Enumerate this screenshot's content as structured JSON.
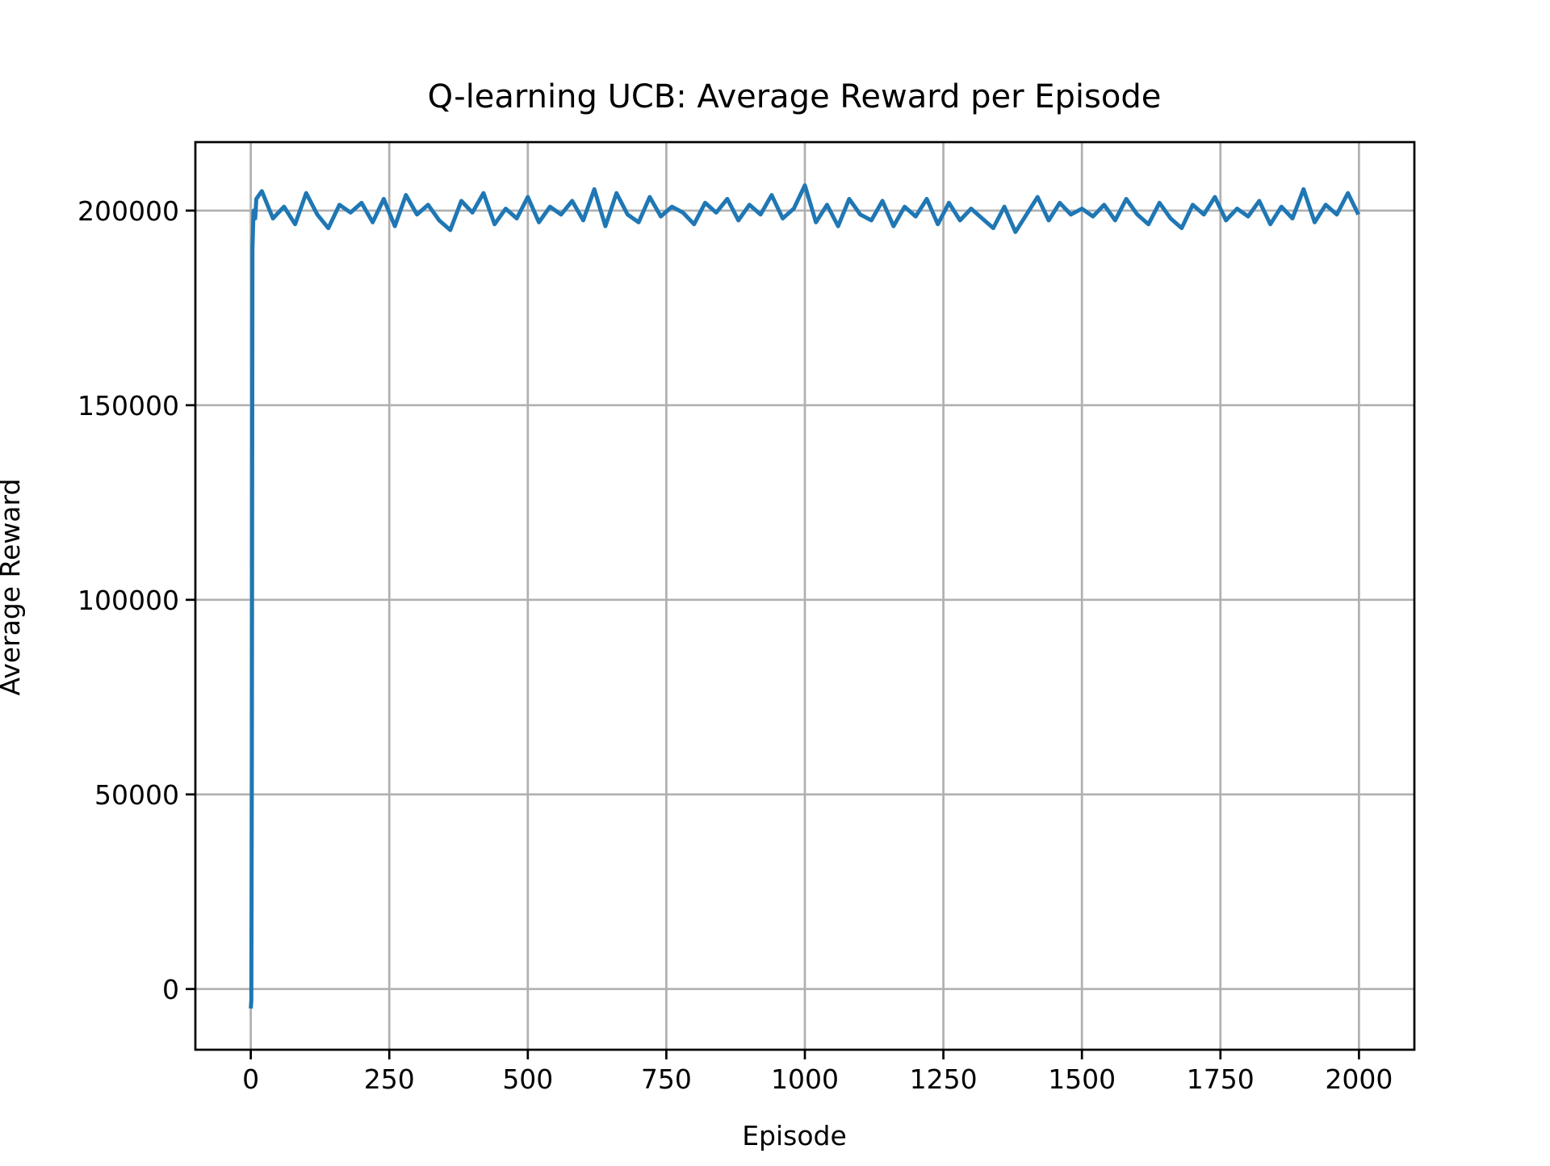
{
  "chart_data": {
    "type": "line",
    "title": "Q-learning UCB: Average Reward per Episode",
    "xlabel": "Episode",
    "ylabel": "Average Reward",
    "x": [
      0,
      1,
      2,
      3,
      5,
      8,
      10,
      20,
      40,
      60,
      80,
      100,
      120,
      140,
      160,
      180,
      200,
      220,
      240,
      260,
      280,
      300,
      320,
      340,
      360,
      380,
      400,
      420,
      440,
      460,
      480,
      500,
      520,
      540,
      560,
      580,
      600,
      620,
      640,
      660,
      680,
      700,
      720,
      740,
      760,
      780,
      800,
      820,
      840,
      860,
      880,
      900,
      920,
      940,
      960,
      980,
      1000,
      1020,
      1040,
      1060,
      1080,
      1100,
      1120,
      1140,
      1160,
      1180,
      1200,
      1220,
      1240,
      1260,
      1280,
      1300,
      1320,
      1340,
      1360,
      1380,
      1400,
      1420,
      1440,
      1460,
      1480,
      1500,
      1520,
      1540,
      1560,
      1580,
      1600,
      1620,
      1640,
      1660,
      1680,
      1700,
      1720,
      1740,
      1760,
      1780,
      1800,
      1820,
      1840,
      1860,
      1880,
      1900,
      1920,
      1940,
      1960,
      1980,
      1999
    ],
    "series": [
      {
        "name": "Average Reward",
        "color": "#1f77b4",
        "values": [
          -5000,
          -3000,
          60000,
          190000,
          200000,
          198000,
          203000,
          205000,
          198000,
          201000,
          196500,
          204500,
          199000,
          195500,
          201500,
          199500,
          202000,
          197000,
          203000,
          196000,
          204000,
          199000,
          201500,
          197500,
          195000,
          202500,
          199500,
          204500,
          196500,
          200500,
          198000,
          203500,
          197000,
          201000,
          199000,
          202500,
          197500,
          205500,
          196000,
          204500,
          199000,
          197000,
          203500,
          198500,
          201000,
          199500,
          196500,
          202000,
          199500,
          203000,
          197500,
          201500,
          199000,
          204000,
          198000,
          200500,
          206500,
          197000,
          201500,
          196000,
          203000,
          199000,
          197500,
          202500,
          196000,
          201000,
          198500,
          203000,
          196500,
          202000,
          197500,
          200500,
          198000,
          195500,
          201000,
          194500,
          199000,
          203500,
          197500,
          202000,
          199000,
          200500,
          198500,
          201500,
          197500,
          203000,
          199000,
          196500,
          202000,
          198000,
          195500,
          201500,
          199000,
          203500,
          197500,
          200500,
          198500,
          202500,
          196500,
          201000,
          198000,
          205500,
          197000,
          201500,
          199000,
          204500,
          199000
        ]
      }
    ],
    "xlim": [
      -100,
      2100
    ],
    "ylim": [
      -15600,
      217600
    ],
    "xticks": [
      0,
      250,
      500,
      750,
      1000,
      1250,
      1500,
      1750,
      2000
    ],
    "yticks": [
      0,
      50000,
      100000,
      150000,
      200000
    ],
    "grid": true
  }
}
